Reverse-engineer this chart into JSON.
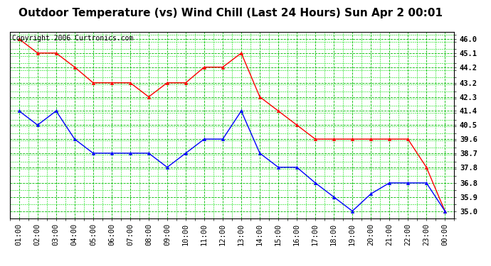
{
  "title": "Outdoor Temperature (vs) Wind Chill (Last 24 Hours) Sun Apr 2 00:01",
  "copyright": "Copyright 2006 Curtronics.com",
  "x_labels": [
    "01:00",
    "02:00",
    "03:00",
    "04:00",
    "05:00",
    "06:00",
    "07:00",
    "08:00",
    "09:00",
    "10:00",
    "11:00",
    "12:00",
    "13:00",
    "14:00",
    "15:00",
    "16:00",
    "17:00",
    "18:00",
    "19:00",
    "20:00",
    "21:00",
    "22:00",
    "23:00",
    "00:00"
  ],
  "temp_red": [
    46.0,
    45.1,
    45.1,
    44.2,
    43.2,
    43.2,
    43.2,
    42.3,
    43.2,
    43.2,
    44.2,
    44.2,
    45.1,
    42.3,
    41.4,
    40.5,
    39.6,
    39.6,
    39.6,
    39.6,
    39.6,
    39.6,
    37.8,
    35.0
  ],
  "wind_blue": [
    41.4,
    40.5,
    41.4,
    39.6,
    38.7,
    38.7,
    38.7,
    38.7,
    37.8,
    38.7,
    39.6,
    39.6,
    41.4,
    38.7,
    37.8,
    37.8,
    36.8,
    35.9,
    35.0,
    36.1,
    36.8,
    36.8,
    36.8,
    35.0
  ],
  "ylim_min": 34.55,
  "ylim_max": 46.45,
  "yticks": [
    35.0,
    35.9,
    36.8,
    37.8,
    38.7,
    39.6,
    40.5,
    41.4,
    42.3,
    43.2,
    44.2,
    45.1,
    46.0
  ],
  "background_color": "#ffffff",
  "plot_bg_color": "#ffffff",
  "grid_color_major": "#00bb00",
  "grid_color_minor": "#00dd00",
  "line_color_red": "#ff0000",
  "line_color_blue": "#0000ff",
  "marker": "^",
  "marker_size": 3,
  "title_fontsize": 11,
  "tick_fontsize": 7.5,
  "copyright_fontsize": 7
}
